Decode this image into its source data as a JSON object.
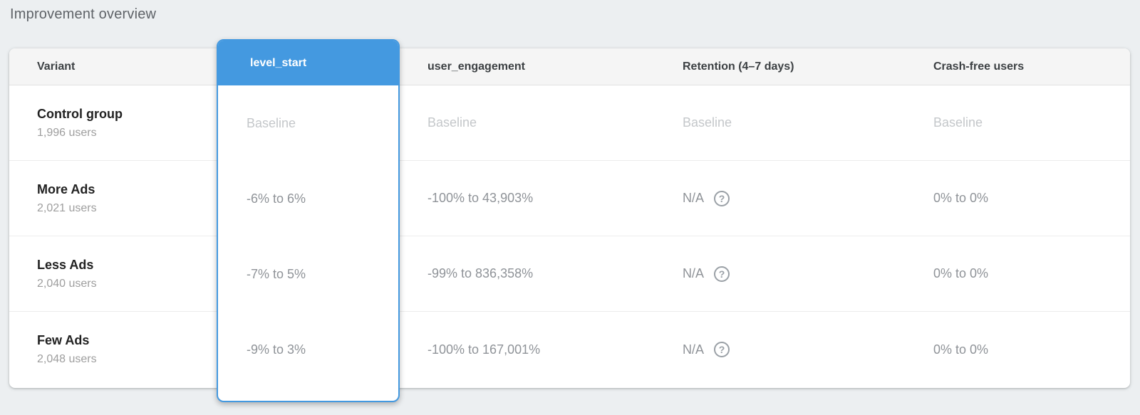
{
  "page": {
    "title": "Improvement overview"
  },
  "colors": {
    "accent_blue": "#4499e0",
    "page_background": "#eceff1",
    "header_row_background": "#f5f5f5",
    "baseline_text": "#c4c7ca",
    "value_text": "#8f9398"
  },
  "icons": {
    "help": "?"
  },
  "table": {
    "columns": {
      "variant": "Variant",
      "level_start": "level_start",
      "user_engagement": "user_engagement",
      "retention": "Retention (4–7 days)",
      "crash_free": "Crash-free users"
    },
    "selected_column": "level_start",
    "rows": [
      {
        "variant": "Control group",
        "users": "1,996 users",
        "level_start": "Baseline",
        "user_engagement": "Baseline",
        "retention": "Baseline",
        "crash_free": "Baseline"
      },
      {
        "variant": "More Ads",
        "users": "2,021 users",
        "level_start": "-6% to 6%",
        "user_engagement": "-100% to 43,903%",
        "retention": "N/A",
        "crash_free": "0% to 0%"
      },
      {
        "variant": "Less Ads",
        "users": "2,040 users",
        "level_start": "-7% to 5%",
        "user_engagement": "-99% to 836,358%",
        "retention": "N/A",
        "crash_free": "0% to 0%"
      },
      {
        "variant": "Few Ads",
        "users": "2,048 users",
        "level_start": "-9% to 3%",
        "user_engagement": "-100% to 167,001%",
        "retention": "N/A",
        "crash_free": "0% to 0%"
      }
    ]
  }
}
